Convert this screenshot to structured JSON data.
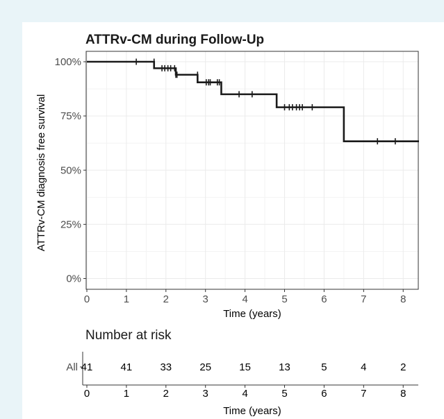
{
  "chart_data": {
    "type": "line",
    "title": "ATTRv-CM during Follow-Up",
    "xlabel": "Time (years)",
    "ylabel": "ATTRv-CM diagnosis free survival",
    "xlim": [
      0,
      8.4
    ],
    "ylim": [
      0,
      1
    ],
    "x_ticks": [
      0,
      1,
      2,
      3,
      4,
      5,
      6,
      7,
      8
    ],
    "y_ticks": [
      "0%",
      "25%",
      "50%",
      "75%",
      "100%"
    ],
    "y_tick_values": [
      0,
      0.25,
      0.5,
      0.75,
      1.0
    ],
    "grid": true,
    "series": [
      {
        "step_x": [
          0,
          1.7,
          2.25,
          2.8,
          3.4,
          4.8,
          6.5,
          8.4
        ],
        "step_y": [
          1.0,
          0.97,
          0.94,
          0.905,
          0.85,
          0.79,
          0.633,
          0.633
        ],
        "censor_x": [
          1.25,
          1.7,
          1.9,
          1.97,
          2.05,
          2.12,
          2.22,
          2.25,
          2.28,
          2.8,
          3.02,
          3.08,
          3.12,
          3.3,
          3.35,
          3.85,
          4.18,
          5.0,
          5.12,
          5.2,
          5.3,
          5.38,
          5.45,
          5.7,
          7.35,
          7.8
        ],
        "censor_y": [
          1.0,
          1.0,
          0.97,
          0.97,
          0.97,
          0.97,
          0.97,
          0.94,
          0.94,
          0.94,
          0.905,
          0.905,
          0.905,
          0.905,
          0.905,
          0.85,
          0.85,
          0.79,
          0.79,
          0.79,
          0.79,
          0.79,
          0.79,
          0.79,
          0.633,
          0.633
        ]
      }
    ],
    "risk_table": {
      "title": "Number at risk",
      "strata": [
        "All"
      ],
      "times": [
        0,
        1,
        2,
        3,
        4,
        5,
        6,
        7,
        8
      ],
      "counts": [
        41,
        41,
        33,
        25,
        15,
        13,
        5,
        4,
        2
      ],
      "xlabel": "Time (years)"
    }
  },
  "colors": {
    "background": "#e9f4f8",
    "panel": "#ffffff",
    "line": "#1a1a1a",
    "grid": "#ebebeb",
    "border": "#333333"
  }
}
